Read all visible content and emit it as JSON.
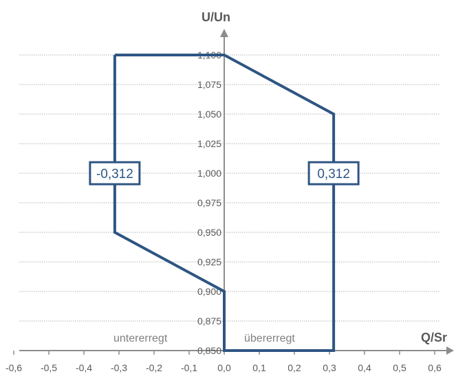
{
  "chart_data": {
    "type": "line",
    "title": "",
    "xlabel": "Q/Sr",
    "ylabel": "U/Un",
    "xlim": [
      -0.6,
      0.6
    ],
    "ylim": [
      0.85,
      1.1
    ],
    "x_ticks": [
      "-0,6",
      "-0,5",
      "-0,4",
      "-0,3",
      "-0,2",
      "-0,1",
      "0,0",
      "0,1",
      "0,2",
      "0,3",
      "0,4",
      "0,5",
      "0,6"
    ],
    "y_ticks": [
      "0,850",
      "0,875",
      "0,900",
      "0,925",
      "0,950",
      "0,975",
      "1,000",
      "1,025",
      "1,050",
      "1,075",
      "1,100"
    ],
    "grid": true,
    "series": [
      {
        "x": [
          -0.312,
          0.0,
          0.312,
          0.312,
          0.0,
          0.0,
          -0.312,
          -0.312
        ],
        "y": [
          1.1,
          1.1,
          1.05,
          0.85,
          0.85,
          0.9,
          0.95,
          1.1
        ],
        "color": "#2e5583"
      }
    ],
    "annotations": [
      {
        "text": "-0,312",
        "x": -0.312,
        "y": 1.0
      },
      {
        "text": "0,312",
        "x": 0.312,
        "y": 1.0
      }
    ],
    "region_labels": [
      {
        "text": "untererregt",
        "side": "left"
      },
      {
        "text": "übererregt",
        "side": "right"
      }
    ]
  }
}
